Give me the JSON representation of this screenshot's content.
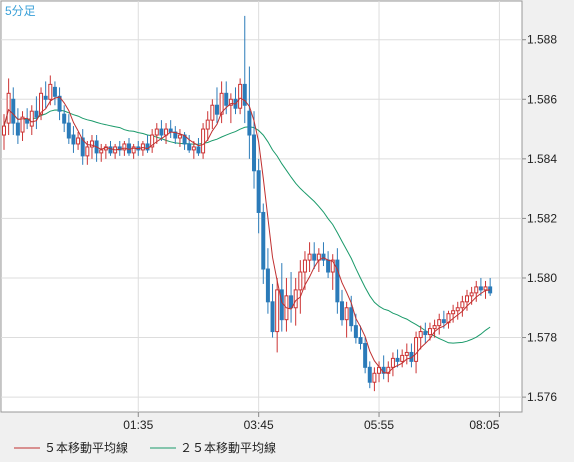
{
  "chart_data": {
    "type": "candlestick",
    "period_label": "5分足",
    "x_ticks": [
      {
        "label": "01:35",
        "index": 29
      },
      {
        "label": "03:45",
        "index": 55
      },
      {
        "label": "05:55",
        "index": 81
      },
      {
        "label": "08:05",
        "index": 107
      }
    ],
    "y_ticks": [
      "1.588",
      "1.586",
      "1.584",
      "1.582",
      "1.580",
      "1.578",
      "1.576"
    ],
    "ylim": [
      1.5755,
      1.5893
    ],
    "grid": true,
    "colors": {
      "up": "#cc3333",
      "down": "#2b7bb9",
      "ma5": "#c03030",
      "ma25": "#1a9a6a"
    },
    "legend": [
      {
        "label": "５本移動平均線",
        "color": "#c03030"
      },
      {
        "label": "２５本移動平均線",
        "color": "#1a9a6a"
      }
    ],
    "candles": [
      [
        1.5848,
        1.5855,
        1.5843,
        1.5851
      ],
      [
        1.5852,
        1.5867,
        1.5848,
        1.5862
      ],
      [
        1.586,
        1.5864,
        1.5848,
        1.5852
      ],
      [
        1.5852,
        1.5857,
        1.5845,
        1.5848
      ],
      [
        1.5849,
        1.5856,
        1.5846,
        1.5854
      ],
      [
        1.5853,
        1.5857,
        1.585,
        1.5852
      ],
      [
        1.5851,
        1.5858,
        1.5848,
        1.5856
      ],
      [
        1.5856,
        1.5861,
        1.585,
        1.5854
      ],
      [
        1.5855,
        1.5864,
        1.5853,
        1.5862
      ],
      [
        1.5861,
        1.5866,
        1.5857,
        1.586
      ],
      [
        1.586,
        1.5868,
        1.5858,
        1.5865
      ],
      [
        1.5864,
        1.5866,
        1.5858,
        1.5861
      ],
      [
        1.5861,
        1.5864,
        1.5853,
        1.5856
      ],
      [
        1.5855,
        1.5858,
        1.5849,
        1.5852
      ],
      [
        1.5852,
        1.5855,
        1.5845,
        1.5847
      ],
      [
        1.5848,
        1.5851,
        1.5842,
        1.5845
      ],
      [
        1.5845,
        1.5849,
        1.5843,
        1.5847
      ],
      [
        1.5847,
        1.585,
        1.5838,
        1.5841
      ],
      [
        1.5841,
        1.5846,
        1.5838,
        1.5844
      ],
      [
        1.5844,
        1.5848,
        1.584,
        1.5846
      ],
      [
        1.5846,
        1.5848,
        1.5839,
        1.5842
      ],
      [
        1.5842,
        1.5845,
        1.5839,
        1.5843
      ],
      [
        1.5843,
        1.5845,
        1.584,
        1.5844
      ],
      [
        1.5844,
        1.5846,
        1.5841,
        1.5842
      ],
      [
        1.5842,
        1.5845,
        1.584,
        1.5844
      ],
      [
        1.5844,
        1.5846,
        1.5841,
        1.5843
      ],
      [
        1.5843,
        1.5846,
        1.5841,
        1.5845
      ],
      [
        1.5845,
        1.5847,
        1.5841,
        1.5842
      ],
      [
        1.5842,
        1.5845,
        1.584,
        1.5844
      ],
      [
        1.5844,
        1.5846,
        1.5841,
        1.5843
      ],
      [
        1.5843,
        1.5846,
        1.5841,
        1.5845
      ],
      [
        1.5845,
        1.5848,
        1.5842,
        1.5843
      ],
      [
        1.5844,
        1.585,
        1.5842,
        1.5848
      ],
      [
        1.5848,
        1.5852,
        1.5845,
        1.585
      ],
      [
        1.585,
        1.5853,
        1.5846,
        1.5848
      ],
      [
        1.5848,
        1.5852,
        1.5845,
        1.585
      ],
      [
        1.585,
        1.5853,
        1.5847,
        1.5849
      ],
      [
        1.5849,
        1.5851,
        1.5845,
        1.5847
      ],
      [
        1.5847,
        1.585,
        1.5844,
        1.5848
      ],
      [
        1.5848,
        1.5849,
        1.5843,
        1.5845
      ],
      [
        1.5845,
        1.5848,
        1.5842,
        1.5843
      ],
      [
        1.5843,
        1.5846,
        1.584,
        1.5844
      ],
      [
        1.5844,
        1.5847,
        1.5841,
        1.5842
      ],
      [
        1.5842,
        1.5852,
        1.584,
        1.585
      ],
      [
        1.585,
        1.5856,
        1.5846,
        1.5853
      ],
      [
        1.5853,
        1.586,
        1.585,
        1.5858
      ],
      [
        1.5858,
        1.5864,
        1.5852,
        1.5855
      ],
      [
        1.5855,
        1.5866,
        1.5852,
        1.5862
      ],
      [
        1.5862,
        1.5866,
        1.5855,
        1.5858
      ],
      [
        1.5858,
        1.5862,
        1.5852,
        1.586
      ],
      [
        1.586,
        1.5864,
        1.5855,
        1.5857
      ],
      [
        1.5857,
        1.5867,
        1.5855,
        1.5865
      ],
      [
        1.5865,
        1.5888,
        1.5852,
        1.5858
      ],
      [
        1.5856,
        1.5871,
        1.584,
        1.5848
      ],
      [
        1.5848,
        1.5856,
        1.583,
        1.5836
      ],
      [
        1.5836,
        1.584,
        1.5815,
        1.5822
      ],
      [
        1.5822,
        1.5825,
        1.5798,
        1.5803
      ],
      [
        1.5803,
        1.581,
        1.5788,
        1.5792
      ],
      [
        1.5792,
        1.5798,
        1.578,
        1.5782
      ],
      [
        1.5782,
        1.58,
        1.5775,
        1.5796
      ],
      [
        1.5796,
        1.5805,
        1.5782,
        1.5786
      ],
      [
        1.5786,
        1.58,
        1.5782,
        1.5794
      ],
      [
        1.5794,
        1.5802,
        1.5785,
        1.579
      ],
      [
        1.579,
        1.58,
        1.5784,
        1.5796
      ],
      [
        1.5796,
        1.5806,
        1.5788,
        1.5802
      ],
      [
        1.5802,
        1.5809,
        1.5796,
        1.5806
      ],
      [
        1.5806,
        1.5812,
        1.5802,
        1.5808
      ],
      [
        1.5808,
        1.5812,
        1.5803,
        1.5806
      ],
      [
        1.5806,
        1.581,
        1.5802,
        1.5808
      ],
      [
        1.5808,
        1.5812,
        1.5804,
        1.5806
      ],
      [
        1.5806,
        1.5809,
        1.58,
        1.5802
      ],
      [
        1.5802,
        1.5808,
        1.5796,
        1.5806
      ],
      [
        1.5806,
        1.581,
        1.5788,
        1.5792
      ],
      [
        1.5792,
        1.5796,
        1.5784,
        1.5786
      ],
      [
        1.5786,
        1.5792,
        1.578,
        1.579
      ],
      [
        1.579,
        1.5794,
        1.5782,
        1.5784
      ],
      [
        1.5784,
        1.5788,
        1.5778,
        1.578
      ],
      [
        1.578,
        1.5784,
        1.5776,
        1.5778
      ],
      [
        1.5778,
        1.578,
        1.5768,
        1.577
      ],
      [
        1.577,
        1.5772,
        1.5763,
        1.5765
      ],
      [
        1.5765,
        1.577,
        1.5762,
        1.5768
      ],
      [
        1.5768,
        1.5772,
        1.5765,
        1.577
      ],
      [
        1.577,
        1.5774,
        1.5766,
        1.5768
      ],
      [
        1.5768,
        1.5772,
        1.5765,
        1.577
      ],
      [
        1.577,
        1.5775,
        1.5767,
        1.5773
      ],
      [
        1.5773,
        1.5776,
        1.577,
        1.5772
      ],
      [
        1.5772,
        1.5776,
        1.577,
        1.5774
      ],
      [
        1.5774,
        1.5778,
        1.5771,
        1.5775
      ],
      [
        1.5775,
        1.5778,
        1.577,
        1.5772
      ],
      [
        1.5772,
        1.5782,
        1.5768,
        1.578
      ],
      [
        1.578,
        1.5784,
        1.5776,
        1.5782
      ],
      [
        1.5782,
        1.5785,
        1.5778,
        1.5781
      ],
      [
        1.5781,
        1.5785,
        1.5779,
        1.5783
      ],
      [
        1.5783,
        1.5786,
        1.578,
        1.5784
      ],
      [
        1.5784,
        1.5788,
        1.5781,
        1.5786
      ],
      [
        1.5786,
        1.5789,
        1.5783,
        1.5785
      ],
      [
        1.5785,
        1.5789,
        1.5783,
        1.5788
      ],
      [
        1.5788,
        1.5791,
        1.5785,
        1.5789
      ],
      [
        1.5789,
        1.5792,
        1.5786,
        1.579
      ],
      [
        1.579,
        1.5794,
        1.5787,
        1.5792
      ],
      [
        1.5792,
        1.5796,
        1.5789,
        1.5794
      ],
      [
        1.5794,
        1.5797,
        1.5791,
        1.5795
      ],
      [
        1.5795,
        1.5799,
        1.5792,
        1.5797
      ],
      [
        1.5797,
        1.58,
        1.5794,
        1.5796
      ],
      [
        1.5796,
        1.5799,
        1.5793,
        1.5797
      ],
      [
        1.5797,
        1.58,
        1.5794,
        1.5795
      ]
    ]
  }
}
